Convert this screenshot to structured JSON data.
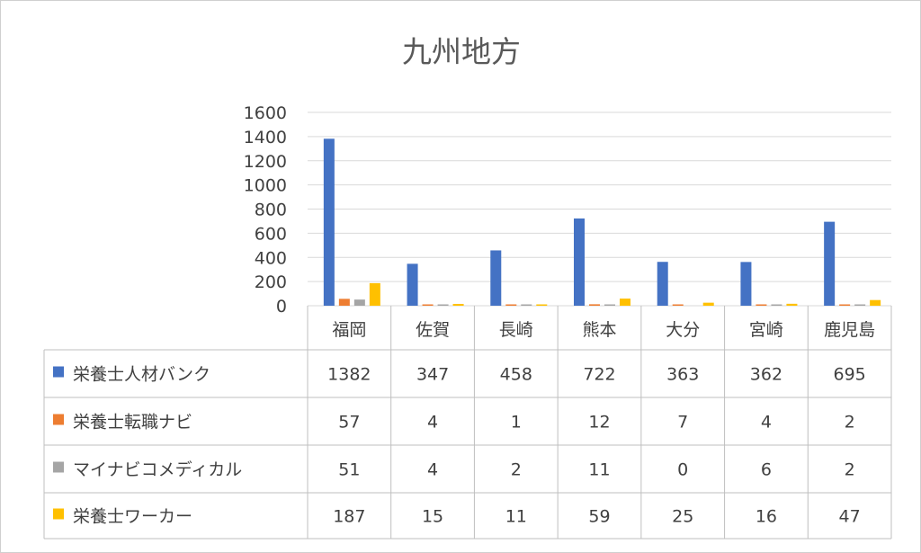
{
  "chart_data": {
    "type": "bar",
    "title": "九州地方",
    "categories": [
      "福岡",
      "佐賀",
      "長崎",
      "熊本",
      "大分",
      "宮崎",
      "鹿児島"
    ],
    "series": [
      {
        "name": "栄養士人材バンク",
        "color": "#4472C4",
        "values": [
          1382,
          347,
          458,
          722,
          363,
          362,
          695
        ]
      },
      {
        "name": "栄養士転職ナビ",
        "color": "#ED7D31",
        "values": [
          57,
          4,
          1,
          12,
          7,
          4,
          2
        ]
      },
      {
        "name": "マイナビコメディカル",
        "color": "#A5A5A5",
        "values": [
          51,
          4,
          2,
          11,
          0,
          6,
          2
        ]
      },
      {
        "name": "栄養士ワーカー",
        "color": "#FFC000",
        "values": [
          187,
          15,
          11,
          59,
          25,
          16,
          47
        ]
      }
    ],
    "ylim": [
      0,
      1600
    ],
    "yticks": [
      0,
      200,
      400,
      600,
      800,
      1000,
      1200,
      1400,
      1600
    ],
    "grid": true,
    "legend": "data-table"
  }
}
